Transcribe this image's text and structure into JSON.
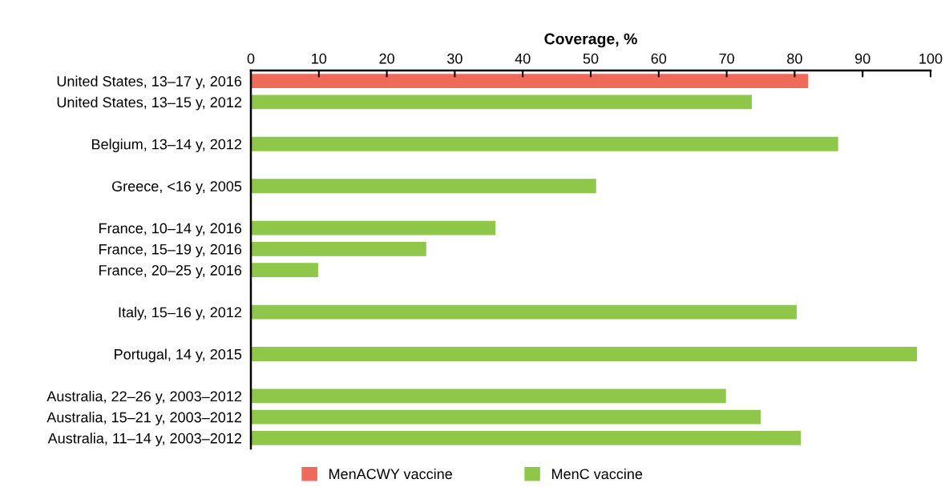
{
  "chart_data": {
    "type": "bar",
    "orientation": "horizontal",
    "stacked": true,
    "xlabel": "Coverage, %",
    "categories": [
      "United States, 13–17 y, 2016",
      "United States, 13–15 y, 2012",
      null,
      "Belgium, 13–14 y, 2012",
      null,
      "Greece, <16 y, 2005",
      null,
      "France, 10–14 y, 2016",
      "France, 15–19 y, 2016",
      "France, 20–25 y, 2016",
      null,
      "Italy, 15–16 y, 2012",
      null,
      "Portugal, 14 y, 2015",
      null,
      "Australia, 22–26 y, 2003–2012",
      "Australia, 15–21 y, 2003–2012",
      "Australia, 11–14 y, 2003–2012"
    ],
    "series": [
      {
        "name": "MenACWY vaccine",
        "color": "#ee6a5a",
        "values": [
          82,
          null,
          null,
          null,
          null,
          null,
          null,
          null,
          null,
          null,
          null,
          null,
          null,
          null,
          null,
          null,
          null,
          null
        ]
      },
      {
        "name": "MenC vaccine",
        "color": "#8fc74a",
        "values": [
          null,
          73.7,
          null,
          86.4,
          null,
          50.8,
          null,
          36,
          25.8,
          9.9,
          null,
          80.3,
          null,
          98,
          null,
          69.9,
          75,
          80.9
        ]
      }
    ],
    "xlim": [
      0,
      100
    ],
    "xticks": [
      0,
      10,
      20,
      30,
      40,
      50,
      60,
      70,
      80,
      90,
      100
    ],
    "grid": false,
    "legend": "bottom"
  }
}
